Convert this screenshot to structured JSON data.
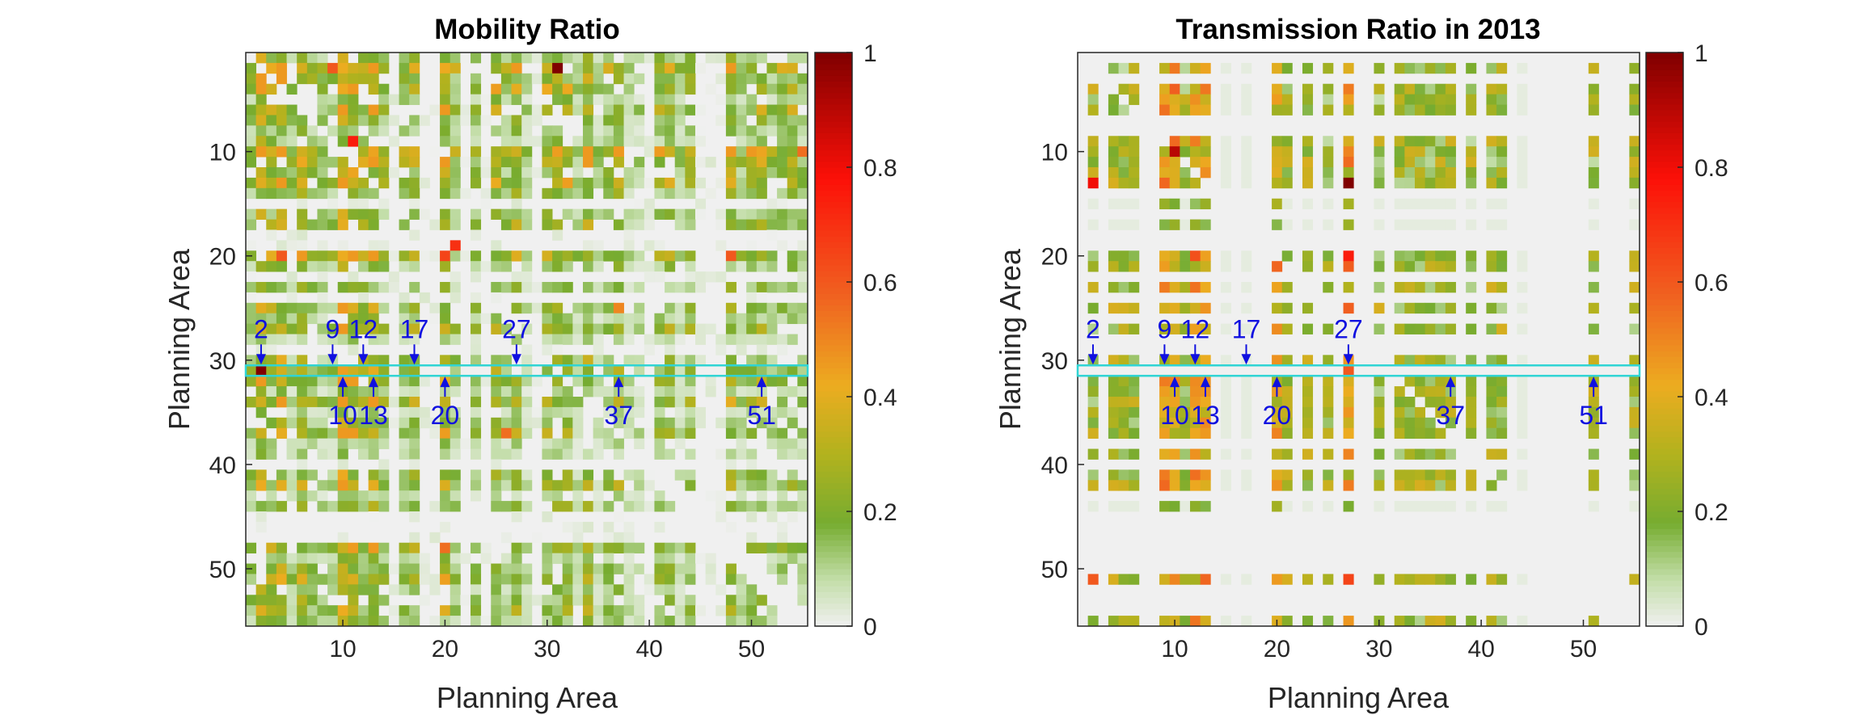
{
  "chart_data": [
    {
      "type": "heatmap",
      "title": "Mobility Ratio",
      "xlabel": "Planning Area",
      "ylabel": "Planning Area",
      "n": 55,
      "xlim": [
        0.5,
        55.5
      ],
      "ylim": [
        0.5,
        55.5
      ],
      "x_ticks": [
        10,
        20,
        30,
        40,
        50
      ],
      "y_ticks": [
        10,
        20,
        30,
        40,
        50
      ],
      "x_tick_labels": [
        "10",
        "20",
        "30",
        "40",
        "50"
      ],
      "y_tick_labels": [
        "10",
        "20",
        "30",
        "40",
        "50"
      ],
      "colorbar": {
        "range": [
          0,
          1
        ],
        "ticks": [
          0,
          0.2,
          0.4,
          0.6,
          0.8,
          1
        ],
        "tick_labels": [
          "0",
          "0.2",
          "0.4",
          "0.6",
          "0.8",
          "1"
        ]
      },
      "highlight_row": 31,
      "highlight_color": "#2fd4d4",
      "empty_indices": [
        15,
        18,
        19,
        22,
        24,
        29,
        40,
        45,
        46,
        47
      ],
      "strong_indices": [
        2,
        10,
        13,
        20,
        27,
        32,
        37,
        51
      ],
      "hotspots": [
        {
          "row": 2,
          "col": 31,
          "value": 1.0
        },
        {
          "row": 31,
          "col": 2,
          "value": 1.0
        },
        {
          "row": 9,
          "col": 11,
          "value": 0.75
        },
        {
          "row": 19,
          "col": 21,
          "value": 0.7
        },
        {
          "row": 20,
          "col": 20,
          "value": 0.65
        },
        {
          "row": 20,
          "col": 4,
          "value": 0.6
        },
        {
          "row": 20,
          "col": 48,
          "value": 0.6
        },
        {
          "row": 48,
          "col": 20,
          "value": 0.55
        },
        {
          "row": 37,
          "col": 26,
          "value": 0.55
        },
        {
          "row": 10,
          "col": 55,
          "value": 0.55
        },
        {
          "row": 2,
          "col": 9,
          "value": 0.6
        },
        {
          "row": 25,
          "col": 37,
          "value": 0.5
        },
        {
          "row": 10,
          "col": 31,
          "value": 0.45
        },
        {
          "row": 13,
          "col": 32,
          "value": 0.45
        }
      ],
      "annotations_above": [
        {
          "label": "2",
          "x": 2
        },
        {
          "label": "9",
          "x": 9
        },
        {
          "label": "12",
          "x": 12
        },
        {
          "label": "17",
          "x": 17
        },
        {
          "label": "27",
          "x": 27
        }
      ],
      "annotations_below": [
        {
          "label": "10",
          "x": 10
        },
        {
          "label": "13",
          "x": 13
        },
        {
          "label": "20",
          "x": 20
        },
        {
          "label": "37",
          "x": 37
        },
        {
          "label": "51",
          "x": 51
        }
      ],
      "seed": 7
    },
    {
      "type": "heatmap",
      "title": "Transmission Ratio in 2013",
      "xlabel": "Planning Area",
      "ylabel": "Planning Area",
      "n": 55,
      "xlim": [
        0.5,
        55.5
      ],
      "ylim": [
        0.5,
        55.5
      ],
      "x_ticks": [
        10,
        20,
        30,
        40,
        50
      ],
      "y_ticks": [
        10,
        20,
        30,
        40,
        50
      ],
      "x_tick_labels": [
        "10",
        "20",
        "30",
        "40",
        "50"
      ],
      "y_tick_labels": [
        "10",
        "20",
        "30",
        "40",
        "50"
      ],
      "colorbar": {
        "range": [
          0,
          1
        ],
        "ticks": [
          0,
          0.2,
          0.4,
          0.6,
          0.8,
          1
        ],
        "tick_labels": [
          "0",
          "0.2",
          "0.4",
          "0.6",
          "0.8",
          "1"
        ]
      },
      "highlight_row": 31,
      "highlight_color": "#2fd4d4",
      "active_indices": [
        2,
        4,
        5,
        6,
        9,
        10,
        11,
        12,
        13,
        20,
        21,
        23,
        25,
        27,
        30,
        32,
        33,
        34,
        35,
        36,
        37,
        39,
        41,
        42,
        51,
        55
      ],
      "faint_indices": [
        15,
        17,
        44
      ],
      "strong_indices": [
        9,
        10,
        12,
        13,
        27,
        20
      ],
      "hotspots": [
        {
          "row": 13,
          "col": 27,
          "value": 1.0
        },
        {
          "row": 10,
          "col": 10,
          "value": 0.9
        },
        {
          "row": 13,
          "col": 2,
          "value": 0.8
        },
        {
          "row": 20,
          "col": 27,
          "value": 0.75
        },
        {
          "row": 51,
          "col": 27,
          "value": 0.65
        },
        {
          "row": 31,
          "col": 27,
          "value": 0.6
        },
        {
          "row": 51,
          "col": 2,
          "value": 0.6
        }
      ],
      "annotations_above": [
        {
          "label": "2",
          "x": 2
        },
        {
          "label": "9",
          "x": 9
        },
        {
          "label": "12",
          "x": 12
        },
        {
          "label": "17",
          "x": 17
        },
        {
          "label": "27",
          "x": 27
        }
      ],
      "annotations_below": [
        {
          "label": "10",
          "x": 10
        },
        {
          "label": "13",
          "x": 13
        },
        {
          "label": "20",
          "x": 20
        },
        {
          "label": "37",
          "x": 37
        },
        {
          "label": "51",
          "x": 51
        }
      ],
      "seed": 19
    }
  ]
}
